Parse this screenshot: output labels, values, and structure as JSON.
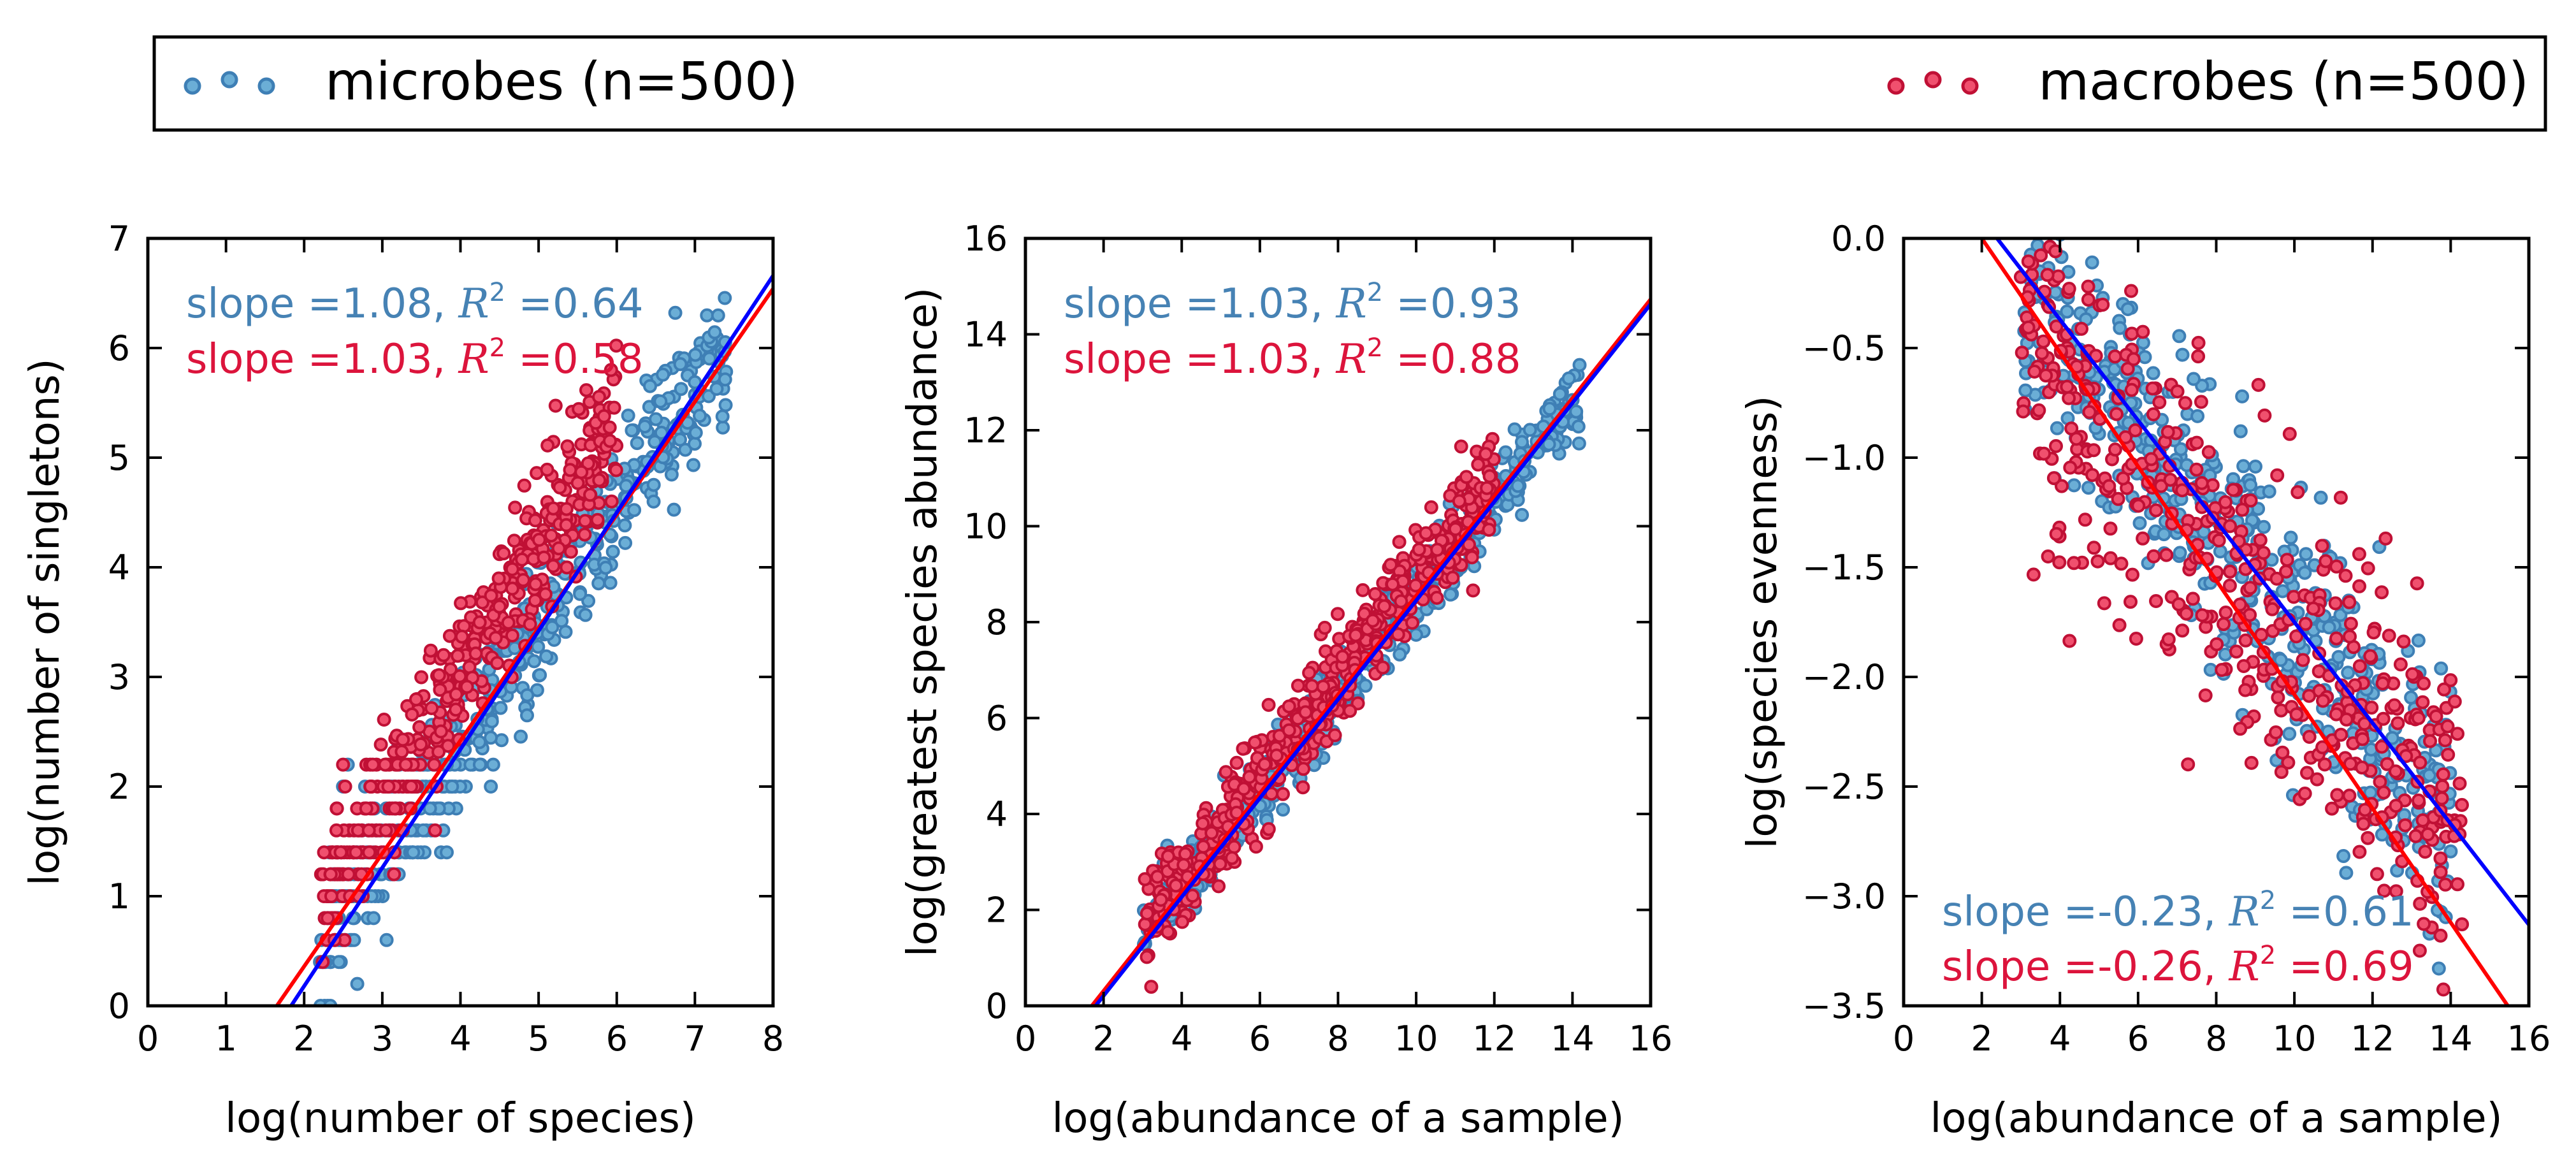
{
  "colors": {
    "microbes_fill": "#6BAED6",
    "microbes_edge": "#3E7FB5",
    "microbes_text": "#4682B4",
    "macrobes_fill": "#F0506E",
    "macrobes_edge": "#C01035",
    "macrobes_text": "#DC143C",
    "microbes_fit_line": "#0000FF",
    "macrobes_fit_line": "#FF0000"
  },
  "legend": {
    "placement": "top, spanning figure width",
    "microbes_label": "microbes (n=500)",
    "macrobes_label": "macrobes (n=500)"
  },
  "chart_data": [
    {
      "type": "scatter",
      "xlabel": "log(number of species)",
      "ylabel": "log(number of singletons)",
      "xlim": [
        0,
        8
      ],
      "ylim": [
        0,
        7
      ],
      "xticks": [
        "0",
        "1",
        "2",
        "3",
        "4",
        "5",
        "6",
        "7",
        "8"
      ],
      "yticks": [
        "0",
        "1",
        "2",
        "3",
        "4",
        "5",
        "6",
        "7"
      ],
      "grid": false,
      "annotations": {
        "microbes": {
          "prefix": "slope =1.08, ",
          "r2_symbol": "R",
          "r2_sup": "2",
          "r2_value": " =0.64"
        },
        "macrobes": {
          "prefix": "slope =1.03, ",
          "r2_symbol": "R",
          "r2_sup": "2",
          "r2_value": " =0.58"
        },
        "placement": "top-left"
      },
      "fit_lines": {
        "microbes": {
          "slope": 1.08,
          "intercept": -1.98
        },
        "macrobes": {
          "slope": 1.03,
          "intercept": -1.7
        }
      },
      "series": [
        {
          "name": "microbes",
          "cloud": {
            "kind": "banded",
            "x_range": [
              2.2,
              7.4
            ],
            "slope": 1.05,
            "intercept": -1.75,
            "spread": 0.35,
            "n": 500,
            "discrete_below": 2.3,
            "seed": 11
          }
        },
        {
          "name": "macrobes",
          "cloud": {
            "kind": "banded",
            "x_range": [
              2.2,
              6.0
            ],
            "slope": 1.15,
            "intercept": -1.55,
            "spread": 0.3,
            "n": 500,
            "discrete_below": 2.3,
            "seed": 23
          }
        }
      ]
    },
    {
      "type": "scatter",
      "xlabel": "log(abundance of a sample)",
      "ylabel": "log(greatest species abundance)",
      "xlim": [
        0,
        16
      ],
      "ylim": [
        0,
        16
      ],
      "xticks": [
        "0",
        "2",
        "4",
        "6",
        "8",
        "10",
        "12",
        "14",
        "16"
      ],
      "yticks": [
        "0",
        "2",
        "4",
        "6",
        "8",
        "10",
        "12",
        "14",
        "16"
      ],
      "grid": false,
      "annotations": {
        "microbes": {
          "prefix": "slope =1.03, ",
          "r2_symbol": "R",
          "r2_sup": "2",
          "r2_value": " =0.93"
        },
        "macrobes": {
          "prefix": "slope =1.03, ",
          "r2_symbol": "R",
          "r2_sup": "2",
          "r2_value": " =0.88"
        },
        "placement": "top-left"
      },
      "fit_lines": {
        "microbes": {
          "slope": 1.03,
          "intercept": -1.85
        },
        "macrobes": {
          "slope": 1.03,
          "intercept": -1.75
        }
      },
      "series": [
        {
          "name": "microbes",
          "cloud": {
            "kind": "linear",
            "x_range": [
              3.0,
              14.2
            ],
            "slope": 1.0,
            "intercept": -1.5,
            "spread": 0.4,
            "n": 500,
            "seed": 37
          }
        },
        {
          "name": "macrobes",
          "cloud": {
            "kind": "linear",
            "x_range": [
              3.0,
              12.0
            ],
            "slope": 1.05,
            "intercept": -1.6,
            "spread": 0.55,
            "n": 500,
            "seed": 41
          }
        }
      ]
    },
    {
      "type": "scatter",
      "xlabel": "log(abundance of a sample)",
      "ylabel": "log(species evenness)",
      "xlim": [
        0,
        16
      ],
      "ylim": [
        -3.5,
        0.0
      ],
      "xticks": [
        "0",
        "2",
        "4",
        "6",
        "8",
        "10",
        "12",
        "14",
        "16"
      ],
      "yticks": [
        "−3.5",
        "−3.0",
        "−2.5",
        "−2.0",
        "−1.5",
        "−1.0",
        "−0.5",
        "0.0"
      ],
      "grid": false,
      "annotations": {
        "microbes": {
          "prefix": "slope =-0.23, ",
          "r2_symbol": "R",
          "r2_sup": "2",
          "r2_value": " =0.61"
        },
        "macrobes": {
          "prefix": "slope =-0.26, ",
          "r2_symbol": "R",
          "r2_sup": "2",
          "r2_value": " =0.69"
        },
        "placement": "bottom-left"
      },
      "fit_lines": {
        "microbes": {
          "slope": -0.23,
          "intercept": 0.55
        },
        "macrobes": {
          "slope": -0.26,
          "intercept": 0.52
        }
      },
      "series": [
        {
          "name": "microbes",
          "cloud": {
            "kind": "linear",
            "x_range": [
              3.0,
              14.0
            ],
            "slope": -0.22,
            "intercept": 0.45,
            "spread": 0.3,
            "n": 500,
            "seed": 53
          }
        },
        {
          "name": "macrobes",
          "cloud": {
            "kind": "linear",
            "x_range": [
              3.0,
              14.3
            ],
            "slope": -0.2,
            "intercept": 0.15,
            "spread": 0.35,
            "n": 500,
            "seed": 67
          }
        }
      ]
    }
  ]
}
